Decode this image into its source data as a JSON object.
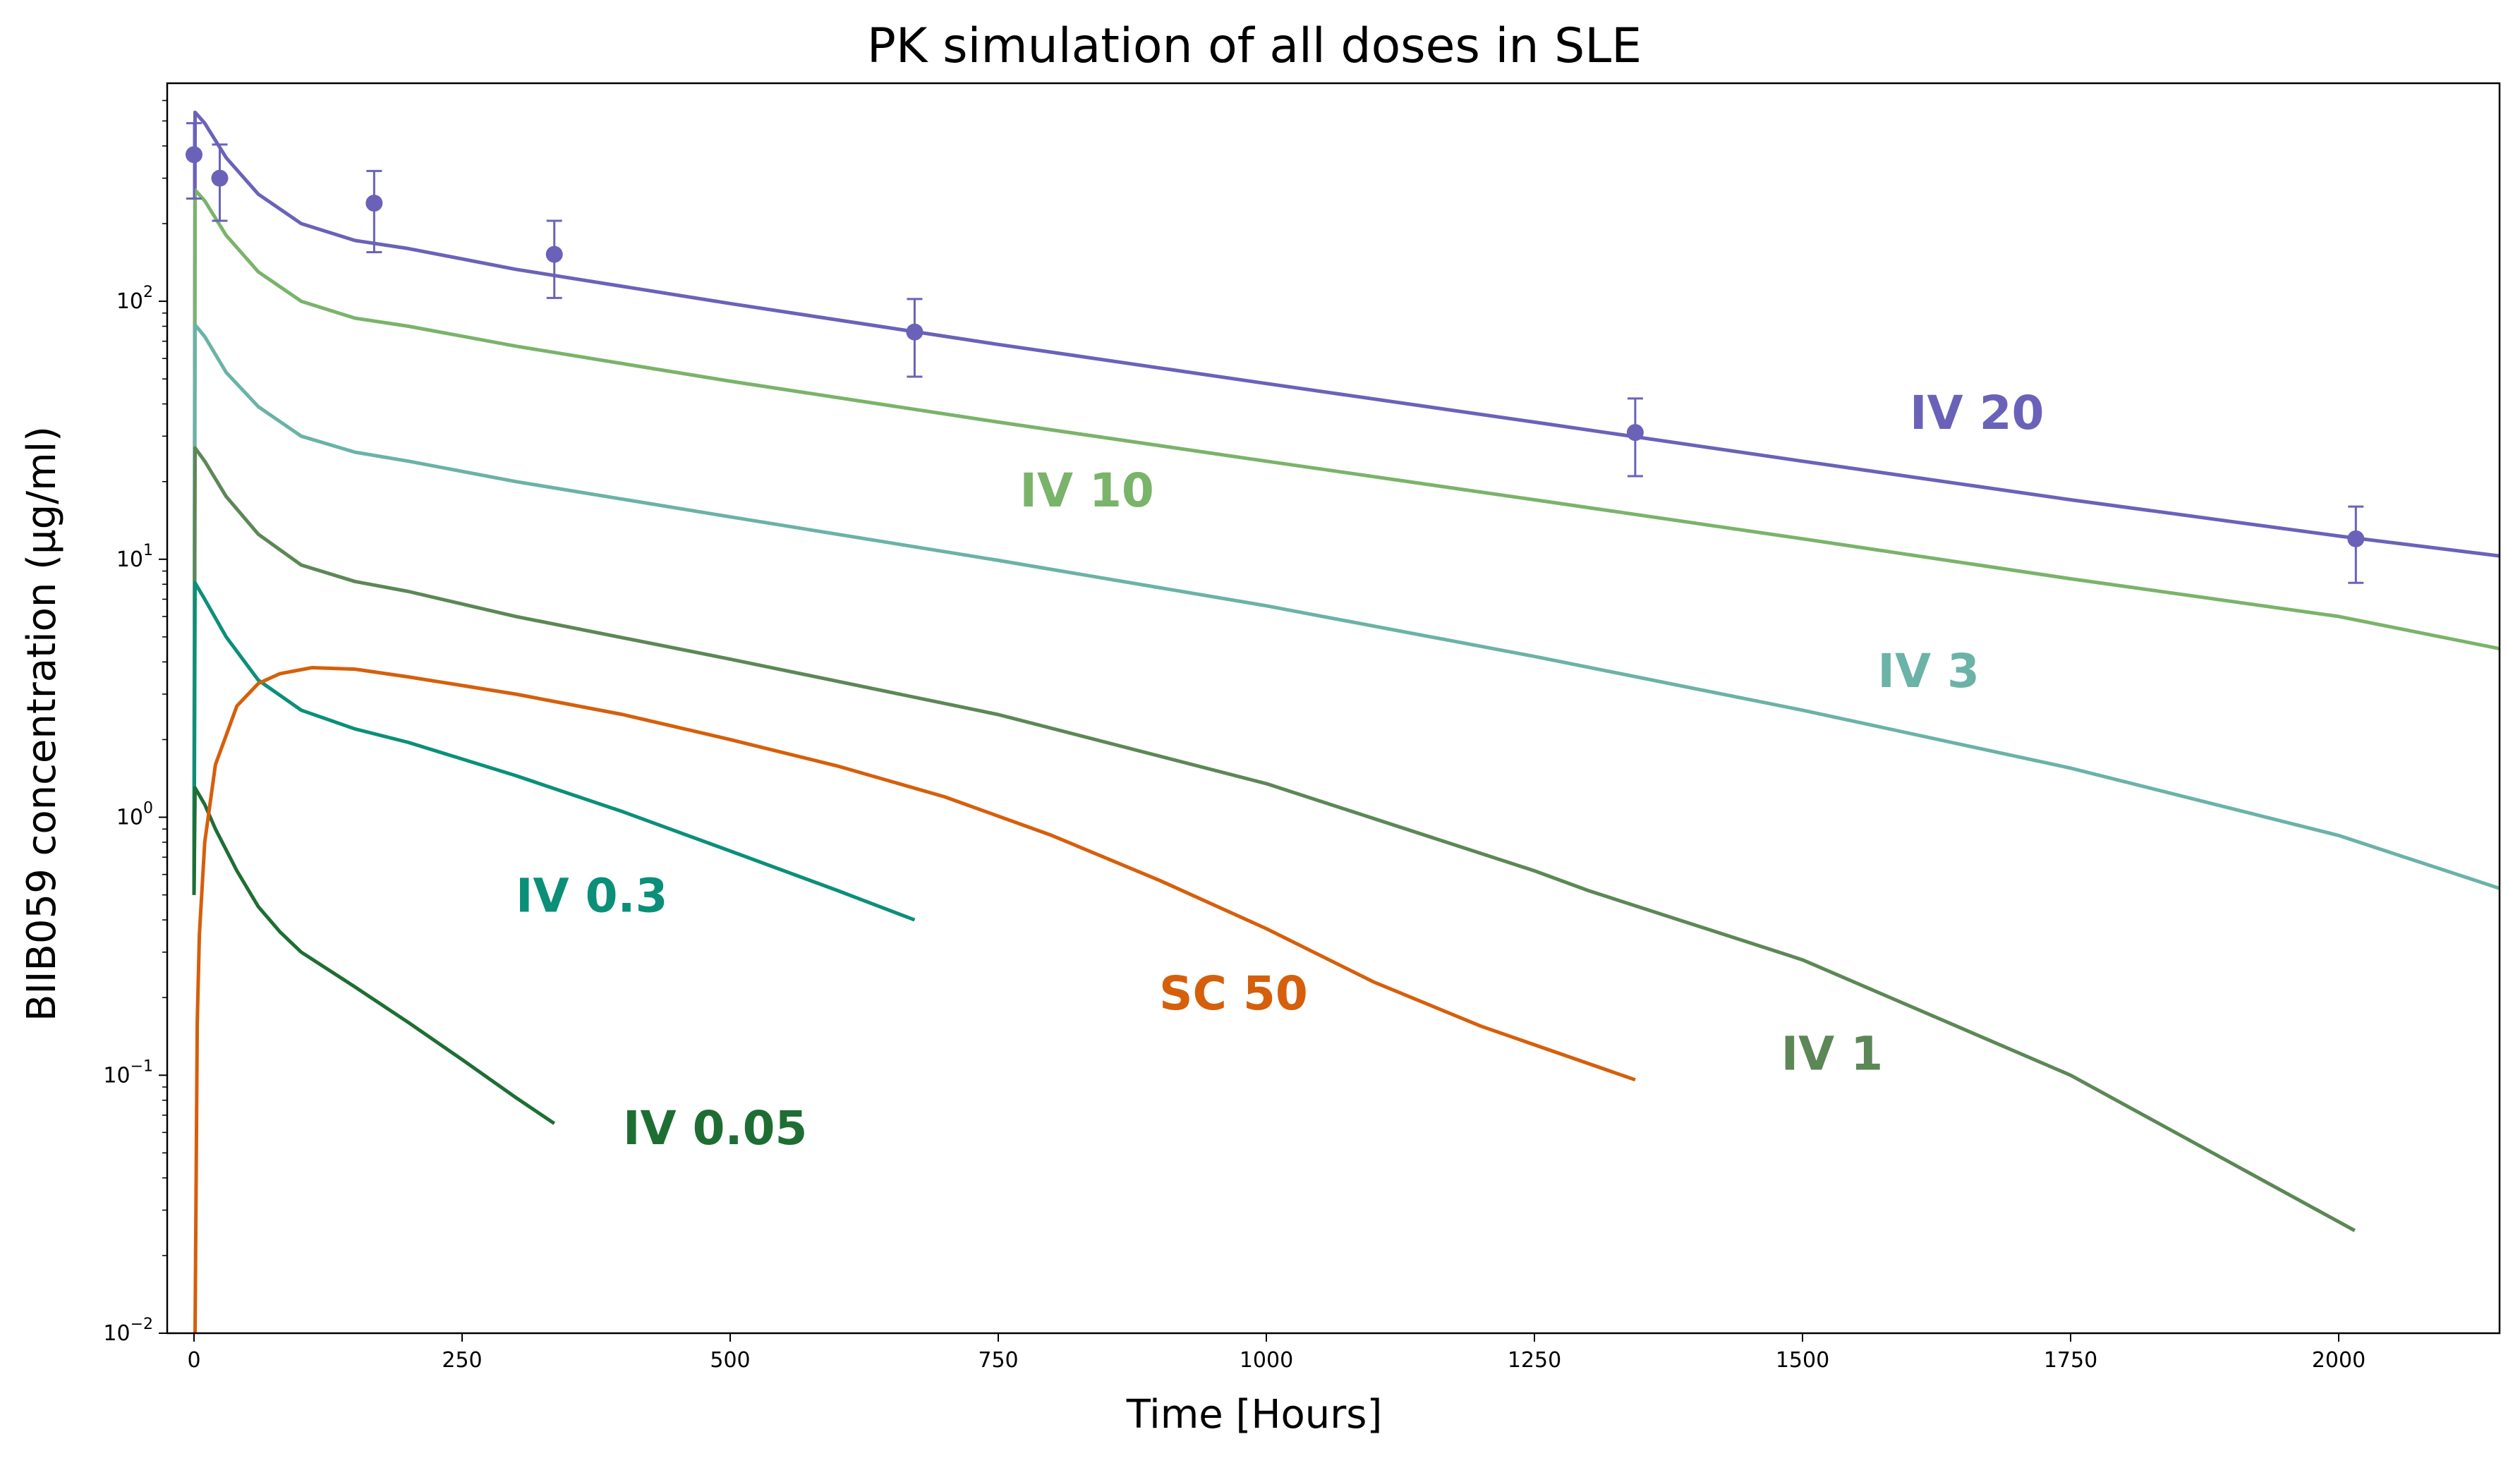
{
  "chart_data": {
    "type": "line",
    "title": "PK simulation of all doses in SLE",
    "xlabel": "Time [Hours]",
    "ylabel": "BIIB059 concentration (µg/ml)",
    "xlim": [
      -25,
      2150
    ],
    "ylim": [
      0.01,
      700
    ],
    "yscale": "log",
    "grid": false,
    "x_ticks": [
      0,
      250,
      500,
      750,
      1000,
      1250,
      1500,
      1750,
      2000
    ],
    "y_ticks": [
      {
        "base": "10",
        "exp": "−2",
        "value": 0.01
      },
      {
        "base": "10",
        "exp": "−1",
        "value": 0.1
      },
      {
        "base": "10",
        "exp": "0",
        "value": 1
      },
      {
        "base": "10",
        "exp": "1",
        "value": 10
      },
      {
        "base": "10",
        "exp": "2",
        "value": 100
      }
    ],
    "series": [
      {
        "name": "IV 20",
        "color": "#6a62b9",
        "x": [
          0,
          1,
          10,
          30,
          60,
          100,
          150,
          200,
          300,
          500,
          750,
          1000,
          1250,
          1500,
          1750,
          2000,
          2150
        ],
        "y": [
          0.5,
          540,
          490,
          360,
          260,
          200,
          172,
          160,
          133,
          98,
          68,
          48,
          34,
          24,
          17,
          12.3,
          10.3
        ]
      },
      {
        "name": "IV 10",
        "color": "#7ab36a",
        "x": [
          0,
          1,
          10,
          30,
          60,
          100,
          150,
          200,
          300,
          500,
          750,
          1000,
          1250,
          1500,
          1750,
          2000,
          2150
        ],
        "y": [
          0.5,
          270,
          245,
          180,
          130,
          100,
          86,
          80,
          67,
          49,
          34,
          24,
          17,
          12,
          8.4,
          6.0,
          4.5
        ]
      },
      {
        "name": "IV 3",
        "color": "#6bb2a7",
        "x": [
          0,
          1,
          10,
          30,
          60,
          100,
          150,
          200,
          300,
          500,
          750,
          1000,
          1250,
          1500,
          1750,
          2000,
          2150
        ],
        "y": [
          0.5,
          81,
          73,
          53,
          39,
          30,
          26,
          24,
          20,
          14.6,
          9.9,
          6.6,
          4.2,
          2.6,
          1.55,
          0.85,
          0.53
        ]
      },
      {
        "name": "IV 1",
        "color": "#5c8756",
        "x": [
          0,
          1,
          10,
          30,
          60,
          100,
          150,
          200,
          300,
          500,
          750,
          1000,
          1250,
          1300,
          1500,
          1750,
          2015
        ],
        "y": [
          0.5,
          27,
          24,
          17.5,
          12.5,
          9.5,
          8.2,
          7.5,
          6.0,
          4.1,
          2.5,
          1.35,
          0.62,
          0.52,
          0.28,
          0.1,
          0.025
        ]
      },
      {
        "name": "IV 0.3",
        "color": "#0b8f79",
        "x": [
          0,
          1,
          10,
          30,
          60,
          100,
          150,
          200,
          300,
          400,
          500,
          600,
          672
        ],
        "y": [
          0.5,
          8.1,
          7.0,
          5.0,
          3.4,
          2.6,
          2.2,
          1.95,
          1.45,
          1.05,
          0.74,
          0.52,
          0.4
        ]
      },
      {
        "name": "IV 0.05",
        "color": "#1e6e34",
        "x": [
          0,
          1,
          10,
          20,
          40,
          60,
          80,
          100,
          150,
          200,
          250,
          300,
          336
        ],
        "y": [
          0.5,
          1.3,
          1.12,
          0.9,
          0.62,
          0.45,
          0.36,
          0.3,
          0.22,
          0.16,
          0.115,
          0.082,
          0.065
        ]
      },
      {
        "name": "SC 50",
        "color": "#d65f0b",
        "x": [
          1,
          3,
          5,
          10,
          20,
          40,
          60,
          80,
          110,
          150,
          200,
          300,
          400,
          500,
          600,
          700,
          800,
          900,
          1000,
          1100,
          1200,
          1344
        ],
        "y": [
          0.01,
          0.16,
          0.35,
          0.8,
          1.6,
          2.7,
          3.3,
          3.6,
          3.8,
          3.75,
          3.5,
          3.0,
          2.5,
          2.0,
          1.58,
          1.2,
          0.85,
          0.57,
          0.37,
          0.23,
          0.155,
          0.096
        ]
      }
    ],
    "observed": {
      "color": "#6a62b9",
      "x": [
        0,
        24,
        168,
        336,
        672,
        1344,
        2016
      ],
      "y": [
        370,
        300,
        240,
        152,
        76,
        31,
        12
      ],
      "err_low": [
        250,
        205,
        155,
        103,
        51,
        21,
        8.1
      ],
      "err_high": [
        490,
        405,
        320,
        205,
        102,
        42,
        16
      ]
    },
    "labels": [
      {
        "text": "IV 20",
        "color": "#6a62b9",
        "x": 1600,
        "y": 32
      },
      {
        "text": "IV 10",
        "color": "#7ab36a",
        "x": 770,
        "y": 16
      },
      {
        "text": "IV 3",
        "color": "#6bb2a7",
        "x": 1570,
        "y": 3.2
      },
      {
        "text": "IV 1",
        "color": "#5c8756",
        "x": 1480,
        "y": 0.105
      },
      {
        "text": "IV 0.3",
        "color": "#0b8f79",
        "x": 300,
        "y": 0.43
      },
      {
        "text": "SC 50",
        "color": "#d65f0b",
        "x": 900,
        "y": 0.18
      },
      {
        "text": "IV 0.05",
        "color": "#1e6e34",
        "x": 400,
        "y": 0.054
      }
    ]
  }
}
